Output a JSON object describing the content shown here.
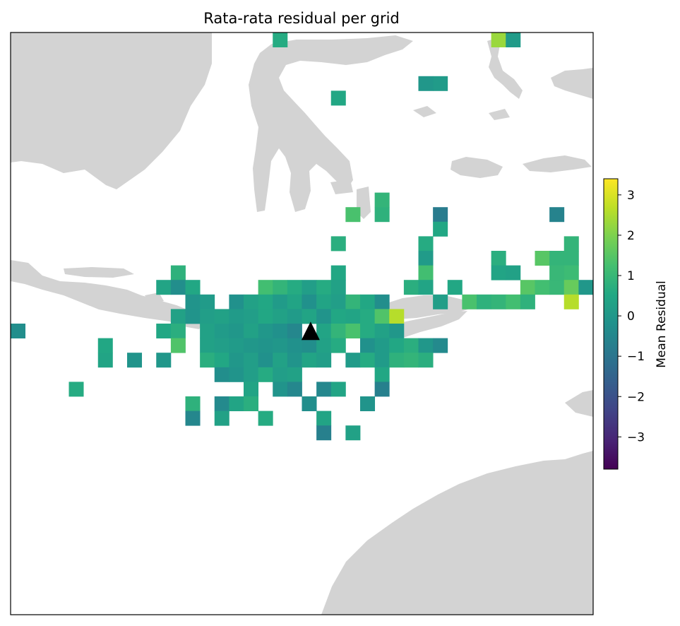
{
  "chart_data": {
    "type": "heatmap",
    "title": "Rata-rata residual per grid",
    "colorbar": {
      "label": "Mean Residual",
      "range": [
        -3.8,
        3.4
      ],
      "ticks": [
        "3",
        "2",
        "1",
        "0",
        "−1",
        "−2",
        "−3"
      ],
      "tick_values": [
        3,
        2,
        1,
        0,
        -1,
        -2,
        -3
      ],
      "colormap": "viridis"
    },
    "grid": {
      "nx": 40,
      "ny": 40
    },
    "marker": {
      "shape": "triangle",
      "col": 20,
      "row": 20.5,
      "color": "#000000"
    },
    "land_color": "#d3d3d3",
    "cells": [
      {
        "c": 18,
        "r": 0,
        "v": 0.6
      },
      {
        "c": 33,
        "r": 0,
        "v": 2.3
      },
      {
        "c": 34,
        "r": 0,
        "v": 0.1
      },
      {
        "c": 28,
        "r": 3,
        "v": 0.0
      },
      {
        "c": 29,
        "r": 3,
        "v": 0.1
      },
      {
        "c": 22,
        "r": 4,
        "v": 0.5
      },
      {
        "c": 40,
        "r": 9,
        "v": 1.1
      },
      {
        "c": 25,
        "r": 11,
        "v": 0.9
      },
      {
        "c": 23,
        "r": 12,
        "v": 1.3
      },
      {
        "c": 25,
        "r": 12,
        "v": 0.8
      },
      {
        "c": 29,
        "r": 12,
        "v": -0.8
      },
      {
        "c": 37,
        "r": 12,
        "v": -0.6
      },
      {
        "c": 29,
        "r": 13,
        "v": 0.5
      },
      {
        "c": 22,
        "r": 14,
        "v": 0.7
      },
      {
        "c": 28,
        "r": 14,
        "v": 0.6
      },
      {
        "c": 38,
        "r": 14,
        "v": 0.9
      },
      {
        "c": 28,
        "r": 15,
        "v": 0.1
      },
      {
        "c": 33,
        "r": 15,
        "v": 0.7
      },
      {
        "c": 36,
        "r": 15,
        "v": 1.5
      },
      {
        "c": 37,
        "r": 15,
        "v": 0.9
      },
      {
        "c": 38,
        "r": 15,
        "v": 0.9
      },
      {
        "c": 11,
        "r": 16,
        "v": 0.8
      },
      {
        "c": 22,
        "r": 16,
        "v": 0.5
      },
      {
        "c": 28,
        "r": 16,
        "v": 1.2
      },
      {
        "c": 33,
        "r": 16,
        "v": 0.4
      },
      {
        "c": 34,
        "r": 16,
        "v": 0.3
      },
      {
        "c": 37,
        "r": 16,
        "v": 1.0
      },
      {
        "c": 38,
        "r": 16,
        "v": 1.1
      },
      {
        "c": 10,
        "r": 17,
        "v": 0.4
      },
      {
        "c": 11,
        "r": 17,
        "v": -0.3
      },
      {
        "c": 12,
        "r": 17,
        "v": 0.5
      },
      {
        "c": 17,
        "r": 17,
        "v": 1.2
      },
      {
        "c": 18,
        "r": 17,
        "v": 0.9
      },
      {
        "c": 19,
        "r": 17,
        "v": 0.6
      },
      {
        "c": 20,
        "r": 17,
        "v": 0.2
      },
      {
        "c": 21,
        "r": 17,
        "v": 0.6
      },
      {
        "c": 22,
        "r": 17,
        "v": 0.3
      },
      {
        "c": 27,
        "r": 17,
        "v": 0.7
      },
      {
        "c": 28,
        "r": 17,
        "v": 0.4
      },
      {
        "c": 30,
        "r": 17,
        "v": 0.5
      },
      {
        "c": 35,
        "r": 17,
        "v": 1.5
      },
      {
        "c": 36,
        "r": 17,
        "v": 1.2
      },
      {
        "c": 37,
        "r": 17,
        "v": 1.0
      },
      {
        "c": 38,
        "r": 17,
        "v": 1.7
      },
      {
        "c": 39,
        "r": 17,
        "v": 0.0
      },
      {
        "c": 12,
        "r": 18,
        "v": -0.1
      },
      {
        "c": 13,
        "r": 18,
        "v": 0.1
      },
      {
        "c": 15,
        "r": 18,
        "v": -0.2
      },
      {
        "c": 16,
        "r": 18,
        "v": 0.3
      },
      {
        "c": 17,
        "r": 18,
        "v": 0.5
      },
      {
        "c": 18,
        "r": 18,
        "v": 0.1
      },
      {
        "c": 19,
        "r": 18,
        "v": 0.4
      },
      {
        "c": 20,
        "r": 18,
        "v": -0.2
      },
      {
        "c": 21,
        "r": 18,
        "v": 0.4
      },
      {
        "c": 22,
        "r": 18,
        "v": 0.2
      },
      {
        "c": 23,
        "r": 18,
        "v": 0.9
      },
      {
        "c": 24,
        "r": 18,
        "v": 0.5
      },
      {
        "c": 25,
        "r": 18,
        "v": -0.3
      },
      {
        "c": 29,
        "r": 18,
        "v": 0.2
      },
      {
        "c": 31,
        "r": 18,
        "v": 1.3
      },
      {
        "c": 32,
        "r": 18,
        "v": 0.8
      },
      {
        "c": 33,
        "r": 18,
        "v": 0.9
      },
      {
        "c": 34,
        "r": 18,
        "v": 1.2
      },
      {
        "c": 35,
        "r": 18,
        "v": 0.8
      },
      {
        "c": 38,
        "r": 18,
        "v": 2.6
      },
      {
        "c": 11,
        "r": 19,
        "v": 0.3
      },
      {
        "c": 12,
        "r": 19,
        "v": -0.1
      },
      {
        "c": 13,
        "r": 19,
        "v": 0.2
      },
      {
        "c": 14,
        "r": 19,
        "v": 0.3
      },
      {
        "c": 15,
        "r": 19,
        "v": 0.1
      },
      {
        "c": 16,
        "r": 19,
        "v": 0.2
      },
      {
        "c": 17,
        "r": 19,
        "v": 0.5
      },
      {
        "c": 18,
        "r": 19,
        "v": 0.3
      },
      {
        "c": 19,
        "r": 19,
        "v": 0.1
      },
      {
        "c": 20,
        "r": 19,
        "v": 0.4
      },
      {
        "c": 21,
        "r": 19,
        "v": -0.1
      },
      {
        "c": 22,
        "r": 19,
        "v": 0.5
      },
      {
        "c": 23,
        "r": 19,
        "v": 0.4
      },
      {
        "c": 24,
        "r": 19,
        "v": 0.6
      },
      {
        "c": 25,
        "r": 19,
        "v": 1.4
      },
      {
        "c": 26,
        "r": 19,
        "v": 2.6
      },
      {
        "c": 0,
        "r": 20,
        "v": -0.3
      },
      {
        "c": 10,
        "r": 20,
        "v": 0.5
      },
      {
        "c": 11,
        "r": 20,
        "v": 0.7
      },
      {
        "c": 13,
        "r": 20,
        "v": 0.3
      },
      {
        "c": 14,
        "r": 20,
        "v": 0.1
      },
      {
        "c": 15,
        "r": 20,
        "v": 0.0
      },
      {
        "c": 16,
        "r": 20,
        "v": 0.3
      },
      {
        "c": 17,
        "r": 20,
        "v": 0.0
      },
      {
        "c": 18,
        "r": 20,
        "v": -0.2
      },
      {
        "c": 19,
        "r": 20,
        "v": -0.5
      },
      {
        "c": 21,
        "r": 20,
        "v": 0.4
      },
      {
        "c": 22,
        "r": 20,
        "v": 0.9
      },
      {
        "c": 23,
        "r": 20,
        "v": 1.3
      },
      {
        "c": 24,
        "r": 20,
        "v": 0.6
      },
      {
        "c": 25,
        "r": 20,
        "v": 0.3
      },
      {
        "c": 26,
        "r": 20,
        "v": 0.0
      },
      {
        "c": 11,
        "r": 21,
        "v": 1.4
      },
      {
        "c": 13,
        "r": 21,
        "v": 0.3
      },
      {
        "c": 14,
        "r": 21,
        "v": 0.2
      },
      {
        "c": 15,
        "r": 21,
        "v": 0.1
      },
      {
        "c": 16,
        "r": 21,
        "v": 0.0
      },
      {
        "c": 17,
        "r": 21,
        "v": -0.1
      },
      {
        "c": 18,
        "r": 21,
        "v": 0.0
      },
      {
        "c": 19,
        "r": 21,
        "v": -0.2
      },
      {
        "c": 20,
        "r": 21,
        "v": -0.3
      },
      {
        "c": 21,
        "r": 21,
        "v": 0.3
      },
      {
        "c": 22,
        "r": 21,
        "v": 0.6
      },
      {
        "c": 24,
        "r": 21,
        "v": -0.2
      },
      {
        "c": 25,
        "r": 21,
        "v": 0.1
      },
      {
        "c": 26,
        "r": 21,
        "v": 0.5
      },
      {
        "c": 27,
        "r": 21,
        "v": 0.7
      },
      {
        "c": 28,
        "r": 21,
        "v": 0.0
      },
      {
        "c": 29,
        "r": 21,
        "v": -0.4
      },
      {
        "c": 6,
        "r": 22,
        "v": 0.4
      },
      {
        "c": 8,
        "r": 22,
        "v": -0.1
      },
      {
        "c": 10,
        "r": 22,
        "v": 0.0
      },
      {
        "c": 13,
        "r": 22,
        "v": 0.7
      },
      {
        "c": 14,
        "r": 22,
        "v": 0.5
      },
      {
        "c": 15,
        "r": 22,
        "v": 0.0
      },
      {
        "c": 16,
        "r": 22,
        "v": 0.2
      },
      {
        "c": 17,
        "r": 22,
        "v": -0.2
      },
      {
        "c": 18,
        "r": 22,
        "v": 0.3
      },
      {
        "c": 19,
        "r": 22,
        "v": -0.1
      },
      {
        "c": 20,
        "r": 22,
        "v": 0.4
      },
      {
        "c": 21,
        "r": 22,
        "v": 0.2
      },
      {
        "c": 23,
        "r": 22,
        "v": 0.1
      },
      {
        "c": 24,
        "r": 22,
        "v": 0.6
      },
      {
        "c": 25,
        "r": 22,
        "v": 0.1
      },
      {
        "c": 26,
        "r": 22,
        "v": 0.8
      },
      {
        "c": 27,
        "r": 22,
        "v": 0.9
      },
      {
        "c": 28,
        "r": 22,
        "v": 0.7
      },
      {
        "c": 6,
        "r": 21,
        "v": 0.5
      },
      {
        "c": 14,
        "r": 23,
        "v": -0.3
      },
      {
        "c": 15,
        "r": 23,
        "v": -0.1
      },
      {
        "c": 16,
        "r": 23,
        "v": 0.2
      },
      {
        "c": 17,
        "r": 23,
        "v": 0.6
      },
      {
        "c": 18,
        "r": 23,
        "v": 0.2
      },
      {
        "c": 19,
        "r": 23,
        "v": 0.3
      },
      {
        "c": 25,
        "r": 23,
        "v": 0.5
      },
      {
        "c": 4,
        "r": 24,
        "v": 0.6
      },
      {
        "c": 16,
        "r": 24,
        "v": 0.4
      },
      {
        "c": 18,
        "r": 24,
        "v": -0.1
      },
      {
        "c": 19,
        "r": 24,
        "v": -0.5
      },
      {
        "c": 21,
        "r": 24,
        "v": -0.5
      },
      {
        "c": 22,
        "r": 24,
        "v": 0.4
      },
      {
        "c": 25,
        "r": 24,
        "v": -0.7
      },
      {
        "c": 12,
        "r": 25,
        "v": 0.8
      },
      {
        "c": 14,
        "r": 25,
        "v": -0.4
      },
      {
        "c": 15,
        "r": 25,
        "v": 0.4
      },
      {
        "c": 16,
        "r": 25,
        "v": 0.7
      },
      {
        "c": 20,
        "r": 25,
        "v": -0.3
      },
      {
        "c": 24,
        "r": 25,
        "v": -0.1
      },
      {
        "c": 12,
        "r": 26,
        "v": -0.5
      },
      {
        "c": 14,
        "r": 26,
        "v": 0.3
      },
      {
        "c": 17,
        "r": 26,
        "v": 0.6
      },
      {
        "c": 21,
        "r": 26,
        "v": 0.4
      },
      {
        "c": 21,
        "r": 27,
        "v": -0.7
      },
      {
        "c": 23,
        "r": 27,
        "v": 0.3
      }
    ]
  }
}
